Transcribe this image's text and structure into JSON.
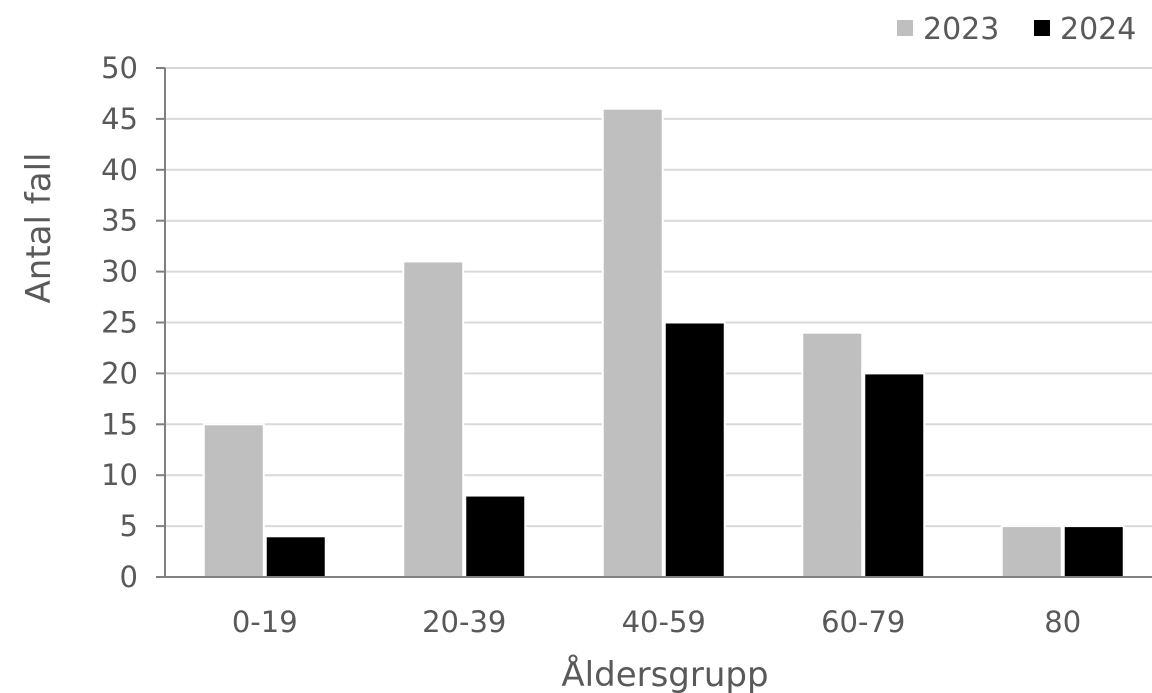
{
  "chart_data": {
    "type": "bar",
    "title": "",
    "xlabel": "Åldersgrupp",
    "ylabel": "Antal fall",
    "categories": [
      "0-19",
      "20-39",
      "40-59",
      "60-79",
      "80"
    ],
    "series": [
      {
        "name": "2023",
        "values": [
          15,
          31,
          46,
          24,
          5
        ],
        "color": "#bfbfbf"
      },
      {
        "name": "2024",
        "values": [
          4,
          8,
          25,
          20,
          5
        ],
        "color": "#000000"
      }
    ],
    "ylim": [
      0,
      50
    ],
    "yticks": [
      0,
      5,
      10,
      15,
      20,
      25,
      30,
      35,
      40,
      45,
      50
    ],
    "grid": true,
    "legend_position": "top-right",
    "colors": {
      "grid": "#d9d9d9",
      "axis": "#7f7f7f",
      "text": "#595959"
    }
  }
}
